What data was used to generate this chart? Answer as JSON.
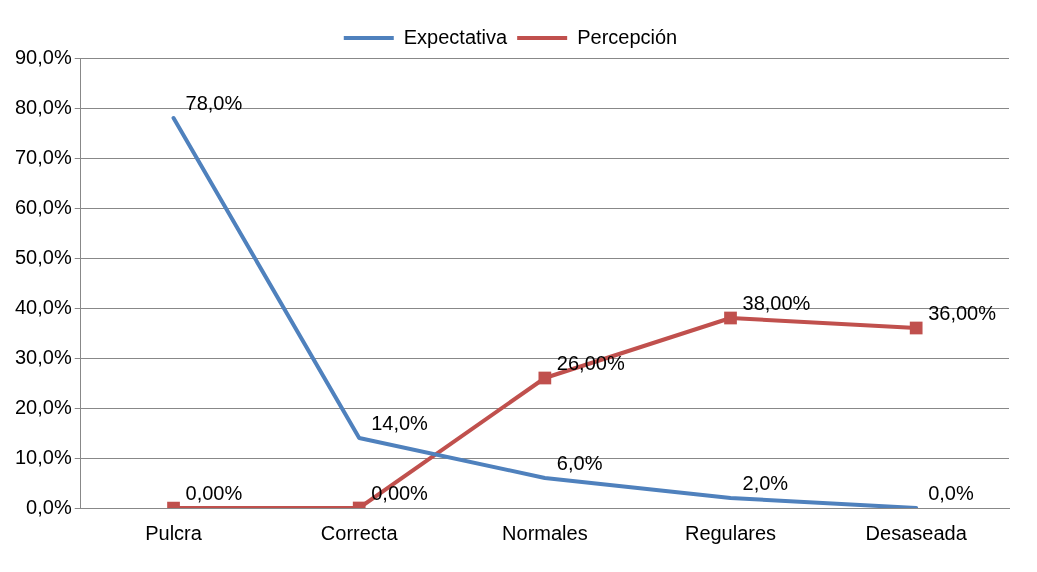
{
  "chart_data": {
    "type": "line",
    "categories": [
      "Pulcra",
      "Correcta",
      "Normales",
      "Regulares",
      "Desaseada"
    ],
    "series": [
      {
        "name": "Expectativa",
        "color": "#4f81bd",
        "marker": "none",
        "values": [
          78,
          14,
          6,
          2,
          0
        ],
        "value_labels": [
          "78,0%",
          "14,0%",
          "6,0%",
          "2,0%",
          "0,0%"
        ]
      },
      {
        "name": "Percepción",
        "color": "#c0504d",
        "marker": "square",
        "values": [
          0,
          0,
          26,
          38,
          36
        ],
        "value_labels": [
          "0,00%",
          "0,00%",
          "26,00%",
          "38,00%",
          "36,00%"
        ]
      }
    ],
    "ylim": [
      0,
      90
    ],
    "yticks": [
      {
        "value": 0,
        "label": "0,0%"
      },
      {
        "value": 10,
        "label": "10,0%"
      },
      {
        "value": 20,
        "label": "20,0%"
      },
      {
        "value": 30,
        "label": "30,0%"
      },
      {
        "value": 40,
        "label": "40,0%"
      },
      {
        "value": 50,
        "label": "50,0%"
      },
      {
        "value": 60,
        "label": "60,0%"
      },
      {
        "value": 70,
        "label": "70,0%"
      },
      {
        "value": 80,
        "label": "80,0%"
      },
      {
        "value": 90,
        "label": "90,0%"
      }
    ],
    "grid": "y",
    "legend": "top",
    "line_style": "solid"
  }
}
